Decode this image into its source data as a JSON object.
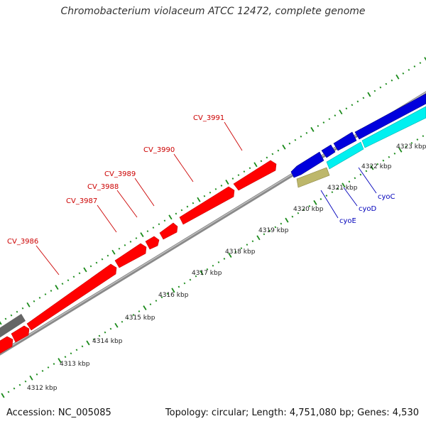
{
  "title": "Chromobacterium violaceum ATCC 12472, complete genome",
  "footer": {
    "accession": "Accession: NC_005085",
    "summary": "Topology: circular; Length: 4,751,080 bp; Genes: 4,530"
  },
  "colors": {
    "forward_cds": "#ff0000",
    "reverse_cds": "#0000dd",
    "cyan_cds": "#00f0f0",
    "olive_cds": "#bdb76b",
    "grey_cds": "#666666",
    "backbone": "#888888",
    "ticks": "#1a8a1a",
    "gene_label_forward": "#cc0000",
    "gene_label_reverse": "#0000bb",
    "scale_label": "#222222"
  },
  "scale_labels": [
    "4312 kbp",
    "4313 kbp",
    "4314 kbp",
    "4315 kbp",
    "4316 kbp",
    "4317 kbp",
    "4318 kbp",
    "4319 kbp",
    "4320 kbp",
    "4321 kbp",
    "4322 kbp",
    "4323 kbp"
  ],
  "forward_gene_labels": [
    "CV_3986",
    "CV_3987",
    "CV_3988",
    "CV_3989",
    "CV_3990",
    "CV_3991"
  ],
  "reverse_gene_labels": [
    "cyoE",
    "cyoD",
    "cyoC"
  ]
}
